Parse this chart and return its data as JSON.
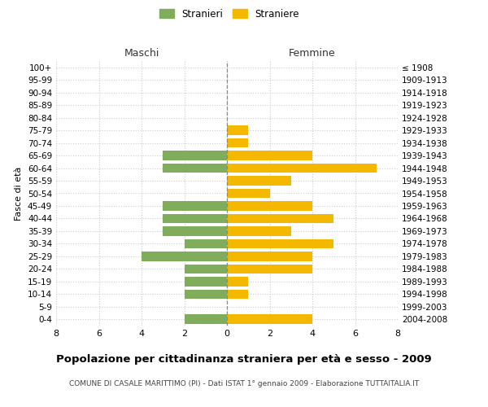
{
  "age_groups": [
    "0-4",
    "5-9",
    "10-14",
    "15-19",
    "20-24",
    "25-29",
    "30-34",
    "35-39",
    "40-44",
    "45-49",
    "50-54",
    "55-59",
    "60-64",
    "65-69",
    "70-74",
    "75-79",
    "80-84",
    "85-89",
    "90-94",
    "95-99",
    "100+"
  ],
  "birth_years": [
    "2004-2008",
    "1999-2003",
    "1994-1998",
    "1989-1993",
    "1984-1988",
    "1979-1983",
    "1974-1978",
    "1969-1973",
    "1964-1968",
    "1959-1963",
    "1954-1958",
    "1949-1953",
    "1944-1948",
    "1939-1943",
    "1934-1938",
    "1929-1933",
    "1924-1928",
    "1919-1923",
    "1914-1918",
    "1909-1913",
    "≤ 1908"
  ],
  "males": [
    2,
    0,
    2,
    2,
    2,
    4,
    2,
    3,
    3,
    3,
    0,
    0,
    3,
    3,
    0,
    0,
    0,
    0,
    0,
    0,
    0
  ],
  "females": [
    4,
    0,
    1,
    1,
    4,
    4,
    5,
    3,
    5,
    4,
    2,
    3,
    7,
    4,
    1,
    1,
    0,
    0,
    0,
    0,
    0
  ],
  "male_color": "#7fad5c",
  "female_color": "#f5b800",
  "background_color": "#ffffff",
  "grid_color": "#cccccc",
  "title": "Popolazione per cittadinanza straniera per età e sesso - 2009",
  "subtitle": "COMUNE DI CASALE MARITTIMO (PI) - Dati ISTAT 1° gennaio 2009 - Elaborazione TUTTAITALIA.IT",
  "ylabel_left": "Fasce di età",
  "header_left": "Maschi",
  "header_right": "Femmine",
  "legend_male": "Stranieri",
  "legend_female": "Straniere",
  "xlim": 8,
  "figsize": [
    6.0,
    5.0
  ],
  "dpi": 100
}
